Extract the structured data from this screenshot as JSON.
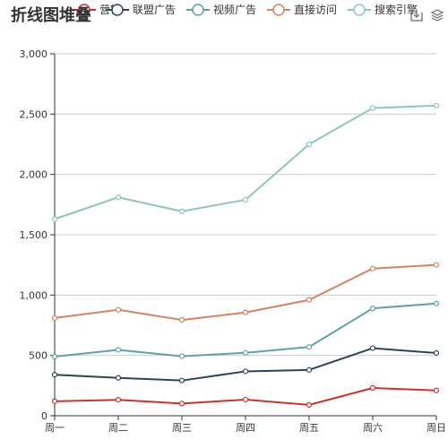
{
  "chart_data": {
    "type": "line",
    "title": "折线图堆叠",
    "categories": [
      "周一",
      "周二",
      "周三",
      "周四",
      "周五",
      "周六",
      "周日"
    ],
    "series": [
      {
        "name": "邮件营销",
        "values": [
          120,
          132,
          101,
          134,
          90,
          230,
          210
        ],
        "color": "#c23531"
      },
      {
        "name": "联盟广告",
        "values": [
          340,
          314,
          292,
          368,
          380,
          560,
          520
        ],
        "color": "#2f4554"
      },
      {
        "name": "视频广告",
        "values": [
          490,
          546,
          493,
          522,
          570,
          890,
          930
        ],
        "color": "#61a0a8"
      },
      {
        "name": "直接访问",
        "values": [
          810,
          878,
          794,
          856,
          960,
          1220,
          1250
        ],
        "color": "#d48265"
      },
      {
        "name": "搜索引擎",
        "values": [
          1630,
          1810,
          1694,
          1790,
          2250,
          2550,
          2570
        ],
        "color": "#91c7ae"
      }
    ],
    "legend_visible_labels": [
      "营销",
      "联盟广告",
      "视频广告",
      "直接访问",
      "搜索引擎"
    ],
    "yticks": [
      "0",
      "500",
      "1,000",
      "1,500",
      "2,000",
      "2,500",
      "3,000"
    ],
    "ylim": [
      0,
      3000
    ],
    "grid": "horizontal",
    "legend_position": "top"
  },
  "toolbox": {
    "save_icon": "save-as-image-icon",
    "layers_icon": "layers-icon"
  }
}
